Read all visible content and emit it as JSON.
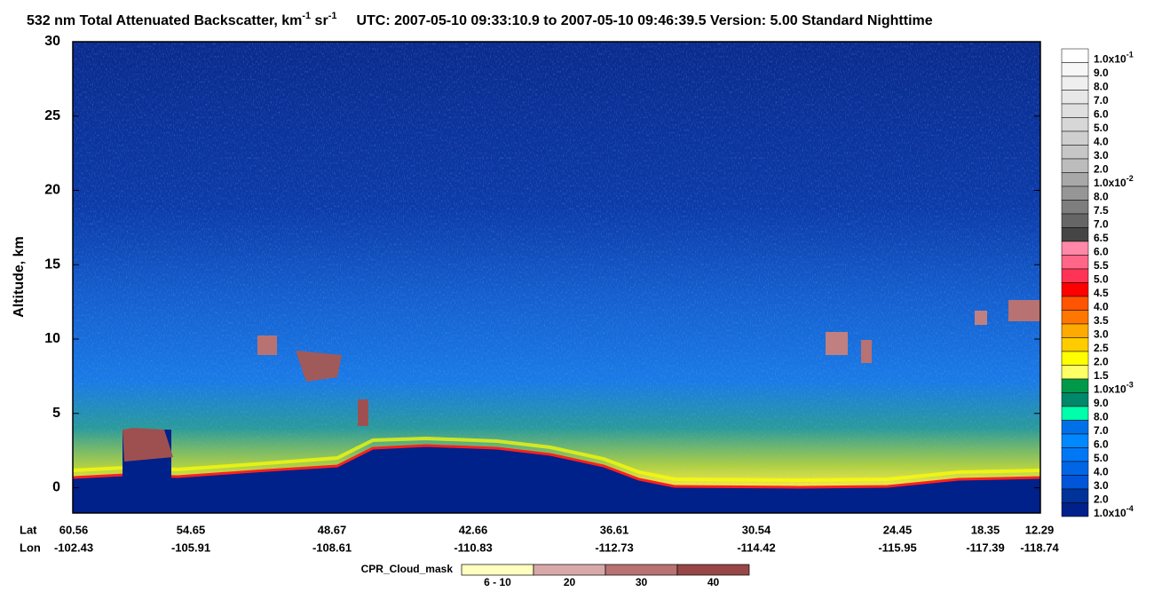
{
  "chart_data": {
    "type": "heatmap",
    "title": {
      "text": "532 nm Total Attenuated Backscatter, km",
      "sup1": "-1",
      "unit2": " sr",
      "sup2": "-1",
      "info": "UTC:  2007-05-10 09:33:10.9  to  2007-05-10 09:46:39.5    Version: 5.00  Standard  Nighttime"
    },
    "ylabel": "Altitude, km",
    "ylim": [
      -1.7,
      30
    ],
    "yticks": [
      0,
      5,
      10,
      15,
      20,
      25,
      30
    ],
    "lat_label": "Lat",
    "lon_label": "Lon",
    "lat": [
      "60.56",
      "54.65",
      "48.67",
      "42.66",
      "36.61",
      "30.54",
      "24.45",
      "18.35",
      "12.29"
    ],
    "lon": [
      "-102.43",
      "-105.91",
      "-108.61",
      "-110.83",
      "-112.73",
      "-114.42",
      "-115.95",
      "-117.39",
      "-118.74"
    ],
    "colorbar": [
      {
        "label": "1.0x10",
        "exponent": "-1",
        "color": "#ffffff"
      },
      {
        "label": "9.0",
        "color": "#f7f7f7"
      },
      {
        "label": "8.0",
        "color": "#efefef"
      },
      {
        "label": "7.0",
        "color": "#e7e7e7"
      },
      {
        "label": "6.0",
        "color": "#dfdfdf"
      },
      {
        "label": "5.0",
        "color": "#d7d7d7"
      },
      {
        "label": "4.0",
        "color": "#cfcfcf"
      },
      {
        "label": "3.0",
        "color": "#c6c6c6"
      },
      {
        "label": "2.0",
        "color": "#bcbcbc"
      },
      {
        "label": "1.0x10",
        "exponent": "-2",
        "color": "#a8a8a8"
      },
      {
        "label": "8.0",
        "color": "#969696"
      },
      {
        "label": "7.5",
        "color": "#7e7e7e"
      },
      {
        "label": "7.0",
        "color": "#666666"
      },
      {
        "label": "6.5",
        "color": "#454545"
      },
      {
        "label": "6.0",
        "color": "#ff88a8"
      },
      {
        "label": "5.5",
        "color": "#ff6688"
      },
      {
        "label": "5.0",
        "color": "#ff3355"
      },
      {
        "label": "4.5",
        "color": "#ff0000"
      },
      {
        "label": "4.0",
        "color": "#ff5500"
      },
      {
        "label": "3.5",
        "color": "#ff7700"
      },
      {
        "label": "3.0",
        "color": "#ffaa00"
      },
      {
        "label": "2.5",
        "color": "#ffcc00"
      },
      {
        "label": "2.0",
        "color": "#ffff00"
      },
      {
        "label": "1.5",
        "color": "#ffff66"
      },
      {
        "label": "1.0x10",
        "exponent": "-3",
        "color": "#00994a"
      },
      {
        "label": "9.0",
        "color": "#00886a"
      },
      {
        "label": "8.0",
        "color": "#00ffaa"
      },
      {
        "label": "7.0",
        "color": "#0070e8"
      },
      {
        "label": "6.0",
        "color": "#0088ff"
      },
      {
        "label": "5.0",
        "color": "#0078f5"
      },
      {
        "label": "4.0",
        "color": "#0066e6"
      },
      {
        "label": "3.0",
        "color": "#0055d8"
      },
      {
        "label": "2.0",
        "color": "#003399"
      },
      {
        "label": "1.0x10",
        "exponent": "-4",
        "color": "#00208a"
      }
    ],
    "cloud_mask": {
      "title": "CPR_Cloud_mask",
      "classes": [
        {
          "label": "6 - 10",
          "color": "#ffffc0"
        },
        {
          "label": "20",
          "color": "#d8a8a8"
        },
        {
          "label": "30",
          "color": "#b87272"
        },
        {
          "label": "40",
          "color": "#984646"
        }
      ]
    }
  }
}
